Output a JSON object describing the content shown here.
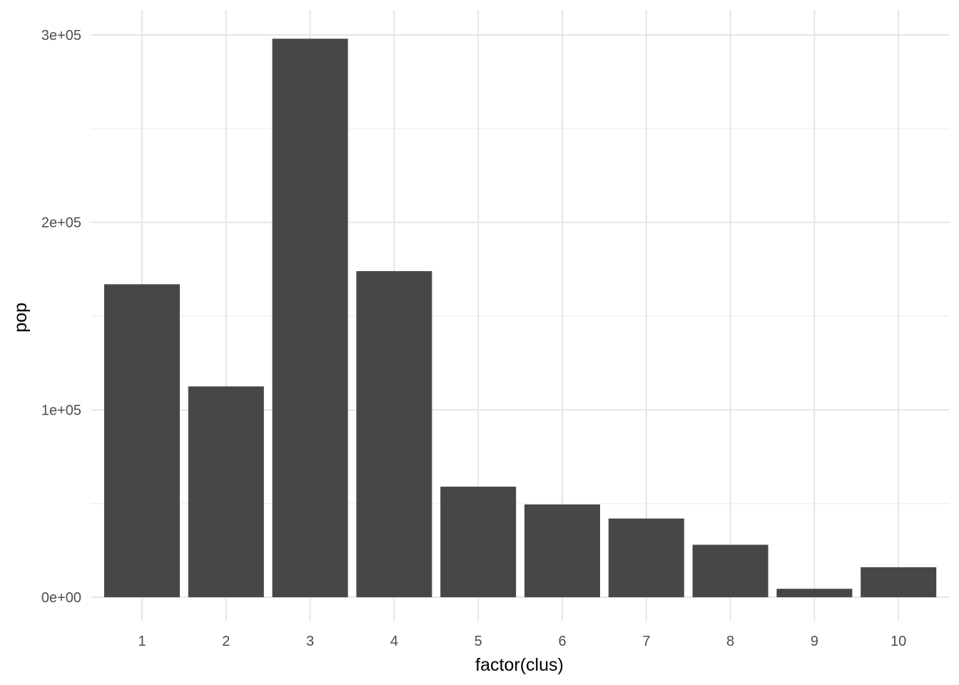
{
  "chart_data": {
    "type": "bar",
    "title": "",
    "xlabel": "factor(clus)",
    "ylabel": "pop",
    "categories": [
      "1",
      "2",
      "3",
      "4",
      "5",
      "6",
      "7",
      "8",
      "9",
      "10"
    ],
    "values": [
      167000,
      112500,
      298000,
      174000,
      59000,
      49500,
      42000,
      28000,
      4500,
      16000
    ],
    "ylim": [
      0,
      300000
    ],
    "y_ticks": [
      0,
      100000,
      200000,
      300000
    ],
    "y_tick_labels": [
      "0e+00",
      "1e+05",
      "2e+05",
      "3e+05"
    ],
    "grid": true,
    "legend": "none",
    "colors": {
      "bar": "#474747",
      "grid_major": "#e5e5e5",
      "grid_minor": "#f0f0f0",
      "background": "#ffffff"
    }
  }
}
